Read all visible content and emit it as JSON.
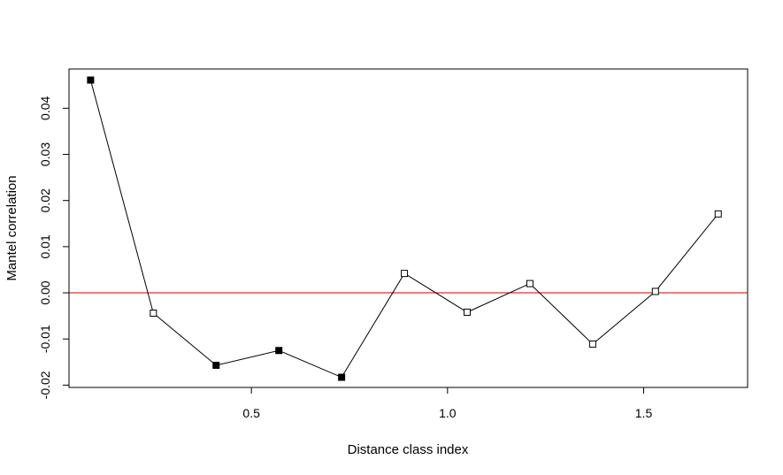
{
  "chart_data": {
    "type": "scatter",
    "title": "",
    "xlabel": "Distance class index",
    "ylabel": "Mantel correlation",
    "xlim": [
      0.035,
      1.765
    ],
    "ylim": [
      -0.0205,
      0.0485
    ],
    "x_ticks": [
      0.5,
      1.0,
      1.5
    ],
    "x_tick_labels": [
      "0.5",
      "1.0",
      "1.5"
    ],
    "y_ticks": [
      -0.02,
      -0.01,
      0.0,
      0.01,
      0.02,
      0.03,
      0.04
    ],
    "y_tick_labels": [
      "-0.02",
      "-0.01",
      "0.00",
      "0.01",
      "0.02",
      "0.03",
      "0.04"
    ],
    "reference_line": {
      "y": 0.0,
      "color": "#cc0000"
    },
    "line_color": "#000000",
    "grid": false,
    "points": [
      {
        "x": 0.09,
        "y": 0.0461,
        "significant": true
      },
      {
        "x": 0.25,
        "y": -0.0044,
        "significant": false
      },
      {
        "x": 0.41,
        "y": -0.0157,
        "significant": true
      },
      {
        "x": 0.57,
        "y": -0.0125,
        "significant": true
      },
      {
        "x": 0.73,
        "y": -0.0183,
        "significant": true
      },
      {
        "x": 0.89,
        "y": 0.0042,
        "significant": false
      },
      {
        "x": 1.05,
        "y": -0.0042,
        "significant": false
      },
      {
        "x": 1.21,
        "y": 0.002,
        "significant": false
      },
      {
        "x": 1.37,
        "y": -0.0111,
        "significant": false
      },
      {
        "x": 1.53,
        "y": 0.0003,
        "significant": false
      },
      {
        "x": 1.69,
        "y": 0.0171,
        "significant": false
      }
    ]
  }
}
